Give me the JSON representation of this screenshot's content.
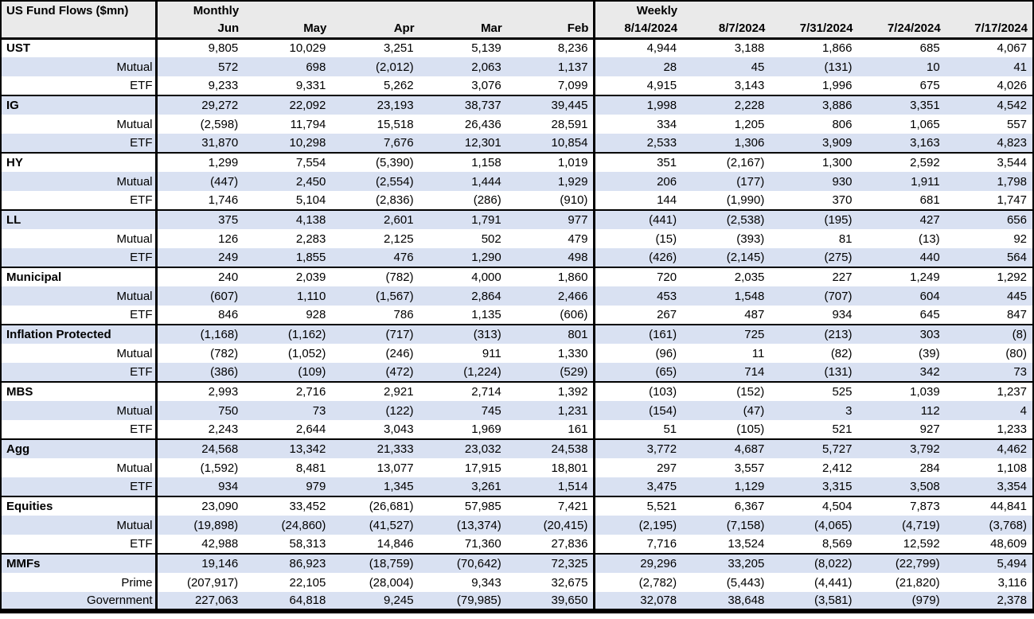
{
  "colors": {
    "stripe": "#d9e1f2",
    "header_bg": "#eaeaea",
    "border": "#000000",
    "text": "#000000"
  },
  "chart_data": {
    "type": "table",
    "title": "US Fund Flows ($mn)",
    "column_groups": [
      {
        "label": "Monthly",
        "columns": [
          "Jun",
          "May",
          "Apr",
          "Mar",
          "Feb"
        ]
      },
      {
        "label": "Weekly",
        "columns": [
          "8/14/2024",
          "8/7/2024",
          "7/31/2024",
          "7/24/2024",
          "7/17/2024"
        ]
      }
    ],
    "row_groups": [
      {
        "rows": [
          {
            "label": "UST",
            "style": "category",
            "monthly": [
              "9,805",
              "10,029",
              "3,251",
              "5,139",
              "8,236"
            ],
            "weekly": [
              "4,944",
              "3,188",
              "1,866",
              "685",
              "4,067"
            ]
          },
          {
            "label": "Mutual",
            "style": "sub",
            "monthly": [
              "572",
              "698",
              "(2,012)",
              "2,063",
              "1,137"
            ],
            "weekly": [
              "28",
              "45",
              "(131)",
              "10",
              "41"
            ]
          },
          {
            "label": "ETF",
            "style": "sub",
            "monthly": [
              "9,233",
              "9,331",
              "5,262",
              "3,076",
              "7,099"
            ],
            "weekly": [
              "4,915",
              "3,143",
              "1,996",
              "675",
              "4,026"
            ]
          }
        ]
      },
      {
        "rows": [
          {
            "label": "IG",
            "style": "category",
            "monthly": [
              "29,272",
              "22,092",
              "23,193",
              "38,737",
              "39,445"
            ],
            "weekly": [
              "1,998",
              "2,228",
              "3,886",
              "3,351",
              "4,542"
            ]
          },
          {
            "label": "Mutual",
            "style": "sub",
            "monthly": [
              "(2,598)",
              "11,794",
              "15,518",
              "26,436",
              "28,591"
            ],
            "weekly": [
              "334",
              "1,205",
              "806",
              "1,065",
              "557"
            ]
          },
          {
            "label": "ETF",
            "style": "sub",
            "monthly": [
              "31,870",
              "10,298",
              "7,676",
              "12,301",
              "10,854"
            ],
            "weekly": [
              "2,533",
              "1,306",
              "3,909",
              "3,163",
              "4,823"
            ]
          }
        ]
      },
      {
        "rows": [
          {
            "label": "HY",
            "style": "category",
            "monthly": [
              "1,299",
              "7,554",
              "(5,390)",
              "1,158",
              "1,019"
            ],
            "weekly": [
              "351",
              "(2,167)",
              "1,300",
              "2,592",
              "3,544"
            ]
          },
          {
            "label": "Mutual",
            "style": "sub",
            "monthly": [
              "(447)",
              "2,450",
              "(2,554)",
              "1,444",
              "1,929"
            ],
            "weekly": [
              "206",
              "(177)",
              "930",
              "1,911",
              "1,798"
            ]
          },
          {
            "label": "ETF",
            "style": "sub",
            "monthly": [
              "1,746",
              "5,104",
              "(2,836)",
              "(286)",
              "(910)"
            ],
            "weekly": [
              "144",
              "(1,990)",
              "370",
              "681",
              "1,747"
            ]
          }
        ]
      },
      {
        "rows": [
          {
            "label": "LL",
            "style": "category",
            "monthly": [
              "375",
              "4,138",
              "2,601",
              "1,791",
              "977"
            ],
            "weekly": [
              "(441)",
              "(2,538)",
              "(195)",
              "427",
              "656"
            ]
          },
          {
            "label": "Mutual",
            "style": "sub",
            "monthly": [
              "126",
              "2,283",
              "2,125",
              "502",
              "479"
            ],
            "weekly": [
              "(15)",
              "(393)",
              "81",
              "(13)",
              "92"
            ]
          },
          {
            "label": "ETF",
            "style": "sub",
            "monthly": [
              "249",
              "1,855",
              "476",
              "1,290",
              "498"
            ],
            "weekly": [
              "(426)",
              "(2,145)",
              "(275)",
              "440",
              "564"
            ]
          }
        ]
      },
      {
        "rows": [
          {
            "label": "Municipal",
            "style": "category",
            "monthly": [
              "240",
              "2,039",
              "(782)",
              "4,000",
              "1,860"
            ],
            "weekly": [
              "720",
              "2,035",
              "227",
              "1,249",
              "1,292"
            ]
          },
          {
            "label": "Mutual",
            "style": "sub",
            "monthly": [
              "(607)",
              "1,110",
              "(1,567)",
              "2,864",
              "2,466"
            ],
            "weekly": [
              "453",
              "1,548",
              "(707)",
              "604",
              "445"
            ]
          },
          {
            "label": "ETF",
            "style": "sub",
            "monthly": [
              "846",
              "928",
              "786",
              "1,135",
              "(606)"
            ],
            "weekly": [
              "267",
              "487",
              "934",
              "645",
              "847"
            ]
          }
        ]
      },
      {
        "rows": [
          {
            "label": "Inflation Protected",
            "style": "category",
            "monthly": [
              "(1,168)",
              "(1,162)",
              "(717)",
              "(313)",
              "801"
            ],
            "weekly": [
              "(161)",
              "725",
              "(213)",
              "303",
              "(8)"
            ]
          },
          {
            "label": "Mutual",
            "style": "sub",
            "monthly": [
              "(782)",
              "(1,052)",
              "(246)",
              "911",
              "1,330"
            ],
            "weekly": [
              "(96)",
              "11",
              "(82)",
              "(39)",
              "(80)"
            ]
          },
          {
            "label": "ETF",
            "style": "sub",
            "monthly": [
              "(386)",
              "(109)",
              "(472)",
              "(1,224)",
              "(529)"
            ],
            "weekly": [
              "(65)",
              "714",
              "(131)",
              "342",
              "73"
            ]
          }
        ]
      },
      {
        "rows": [
          {
            "label": "MBS",
            "style": "category",
            "monthly": [
              "2,993",
              "2,716",
              "2,921",
              "2,714",
              "1,392"
            ],
            "weekly": [
              "(103)",
              "(152)",
              "525",
              "1,039",
              "1,237"
            ]
          },
          {
            "label": "Mutual",
            "style": "sub",
            "monthly": [
              "750",
              "73",
              "(122)",
              "745",
              "1,231"
            ],
            "weekly": [
              "(154)",
              "(47)",
              "3",
              "112",
              "4"
            ]
          },
          {
            "label": "ETF",
            "style": "sub",
            "monthly": [
              "2,243",
              "2,644",
              "3,043",
              "1,969",
              "161"
            ],
            "weekly": [
              "51",
              "(105)",
              "521",
              "927",
              "1,233"
            ]
          }
        ]
      },
      {
        "rows": [
          {
            "label": "Agg",
            "style": "category",
            "monthly": [
              "24,568",
              "13,342",
              "21,333",
              "23,032",
              "24,538"
            ],
            "weekly": [
              "3,772",
              "4,687",
              "5,727",
              "3,792",
              "4,462"
            ]
          },
          {
            "label": "Mutual",
            "style": "sub",
            "monthly": [
              "(1,592)",
              "8,481",
              "13,077",
              "17,915",
              "18,801"
            ],
            "weekly": [
              "297",
              "3,557",
              "2,412",
              "284",
              "1,108"
            ]
          },
          {
            "label": "ETF",
            "style": "sub",
            "monthly": [
              "934",
              "979",
              "1,345",
              "3,261",
              "1,514"
            ],
            "weekly": [
              "3,475",
              "1,129",
              "3,315",
              "3,508",
              "3,354"
            ]
          }
        ]
      },
      {
        "rows": [
          {
            "label": "Equities",
            "style": "category",
            "monthly": [
              "23,090",
              "33,452",
              "(26,681)",
              "57,985",
              "7,421"
            ],
            "weekly": [
              "5,521",
              "6,367",
              "4,504",
              "7,873",
              "44,841"
            ]
          },
          {
            "label": "Mutual",
            "style": "sub",
            "monthly": [
              "(19,898)",
              "(24,860)",
              "(41,527)",
              "(13,374)",
              "(20,415)"
            ],
            "weekly": [
              "(2,195)",
              "(7,158)",
              "(4,065)",
              "(4,719)",
              "(3,768)"
            ]
          },
          {
            "label": "ETF",
            "style": "sub",
            "monthly": [
              "42,988",
              "58,313",
              "14,846",
              "71,360",
              "27,836"
            ],
            "weekly": [
              "7,716",
              "13,524",
              "8,569",
              "12,592",
              "48,609"
            ]
          }
        ]
      },
      {
        "rows": [
          {
            "label": "MMFs",
            "style": "category",
            "monthly": [
              "19,146",
              "86,923",
              "(18,759)",
              "(70,642)",
              "72,325"
            ],
            "weekly": [
              "29,296",
              "33,205",
              "(8,022)",
              "(22,799)",
              "5,494"
            ]
          },
          {
            "label": "Prime",
            "style": "sub",
            "monthly": [
              "(207,917)",
              "22,105",
              "(28,004)",
              "9,343",
              "32,675"
            ],
            "weekly": [
              "(2,782)",
              "(5,443)",
              "(4,441)",
              "(21,820)",
              "3,116"
            ]
          },
          {
            "label": "Government",
            "style": "sub",
            "monthly": [
              "227,063",
              "64,818",
              "9,245",
              "(79,985)",
              "39,650"
            ],
            "weekly": [
              "32,078",
              "38,648",
              "(3,581)",
              "(979)",
              "2,378"
            ]
          }
        ]
      }
    ]
  }
}
